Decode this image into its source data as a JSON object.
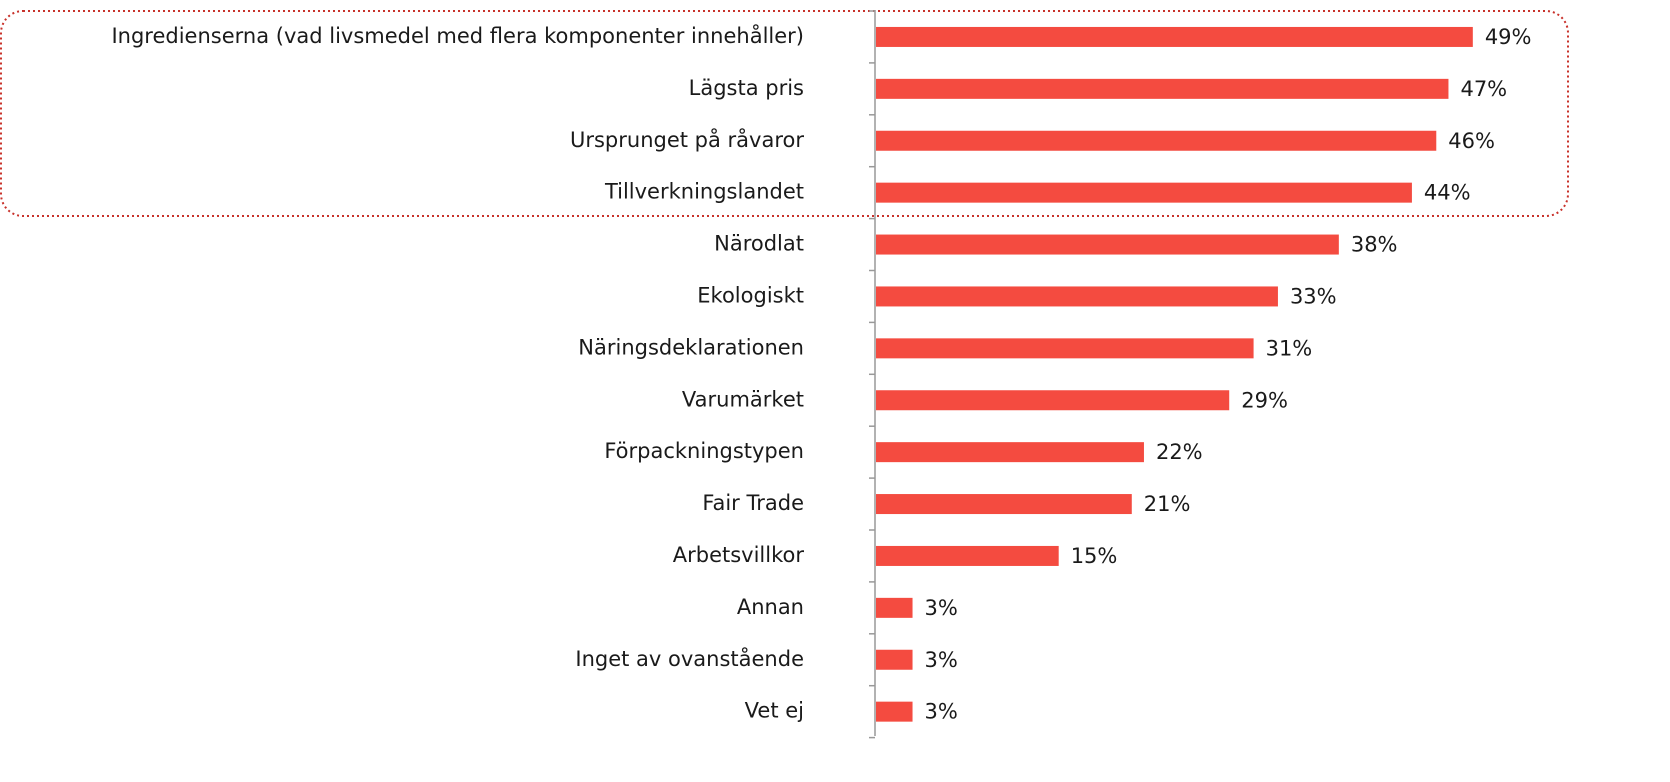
{
  "chart_data": {
    "type": "bar",
    "orientation": "horizontal",
    "categories": [
      "Ingredienserna (vad livsmedel med flera komponenter innehåller)",
      "Lägsta pris",
      "Ursprunget på råvaror",
      "Tillverkningslandet",
      "Närodlat",
      "Ekologiskt",
      "Näringsdeklarationen",
      "Varumärket",
      "Förpackningstypen",
      "Fair Trade",
      "Arbetsvillkor",
      "Annan",
      "Inget av ovanstående",
      "Vet ej"
    ],
    "values": [
      49,
      47,
      46,
      44,
      38,
      33,
      31,
      29,
      22,
      21,
      15,
      3,
      3,
      3
    ],
    "value_labels": [
      "49%",
      "47%",
      "46%",
      "44%",
      "38%",
      "33%",
      "31%",
      "29%",
      "22%",
      "21%",
      "15%",
      "3%",
      "3%",
      "3%"
    ],
    "color": "#f44b40",
    "xlim": [
      0,
      50
    ]
  }
}
